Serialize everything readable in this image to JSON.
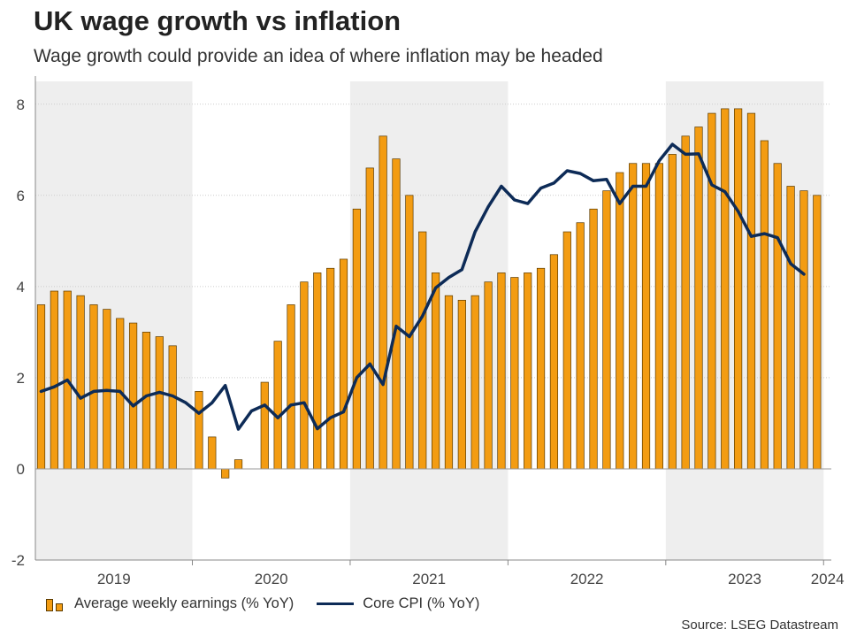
{
  "chart_data": {
    "type": "bar+line",
    "title": "UK wage growth vs inflation",
    "subtitle": "Wage growth could provide an idea of where inflation may be headed",
    "ylim": [
      -2,
      8.5
    ],
    "yticks": [
      -2,
      0,
      2,
      4,
      6,
      8
    ],
    "x_start": "2019-01",
    "year_labels": [
      "2019",
      "2020",
      "2021",
      "2022",
      "2023",
      "2024"
    ],
    "shaded_years": [
      "2019",
      "2021",
      "2023"
    ],
    "series": [
      {
        "name": "Average weekly earnings (% YoY)",
        "type": "bar",
        "color": "#f39c12",
        "values": [
          3.6,
          3.9,
          3.9,
          3.8,
          3.6,
          3.5,
          3.3,
          3.2,
          3.0,
          2.9,
          2.7,
          null,
          1.7,
          0.7,
          -0.2,
          0.2,
          null,
          1.9,
          2.8,
          3.6,
          4.1,
          4.3,
          4.4,
          4.6,
          5.7,
          6.6,
          7.3,
          6.8,
          6.0,
          5.2,
          4.3,
          3.8,
          3.7,
          3.8,
          4.1,
          4.3,
          4.2,
          4.3,
          4.4,
          4.7,
          5.2,
          5.4,
          5.7,
          6.1,
          6.5,
          6.7,
          6.7,
          6.7,
          6.9,
          7.3,
          7.5,
          7.8,
          7.9,
          7.9,
          7.8,
          7.2,
          6.7,
          6.2,
          6.1,
          6.0
        ]
      },
      {
        "name": "Core CPI (% YoY)",
        "type": "line",
        "color": "#0d2b57",
        "values": [
          1.7,
          1.8,
          1.95,
          1.55,
          1.7,
          1.72,
          1.7,
          1.38,
          1.6,
          1.68,
          1.6,
          1.45,
          1.22,
          1.45,
          1.83,
          0.87,
          1.27,
          1.4,
          1.12,
          1.4,
          1.45,
          0.88,
          1.12,
          1.25,
          2.0,
          2.3,
          1.85,
          3.13,
          2.9,
          3.35,
          3.97,
          4.2,
          4.37,
          5.2,
          5.75,
          6.2,
          5.9,
          5.82,
          6.16,
          6.27,
          6.54,
          6.48,
          6.32,
          6.35,
          5.82,
          6.2,
          6.2,
          6.76,
          7.12,
          6.9,
          6.91,
          6.23,
          6.08,
          5.65,
          5.1,
          5.16,
          5.07,
          4.5,
          4.27
        ]
      }
    ],
    "legend_position": "bottom-left",
    "grid": "horizontal dotted"
  },
  "source_text": "Source: LSEG Datastream",
  "colors": {
    "bar": "#f39c12",
    "bar_border": "#5a3a00",
    "line": "#0d2b57",
    "shade": "#eeeeee"
  }
}
